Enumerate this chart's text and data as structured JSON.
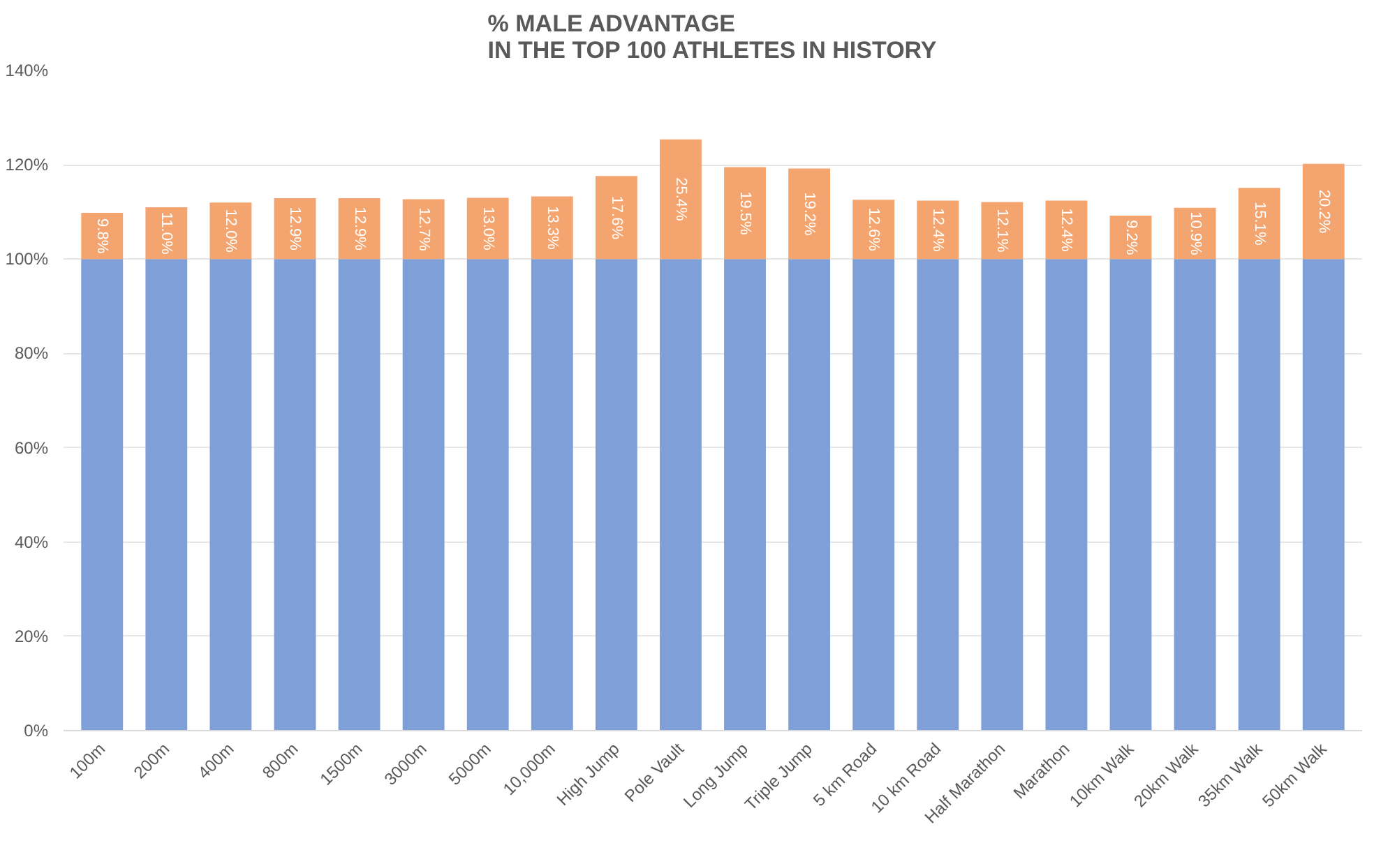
{
  "chart_data": {
    "type": "bar",
    "title": "% MALE ADVANTAGE\nIN THE TOP 100 ATHLETES IN HISTORY",
    "categories": [
      "100m",
      "200m",
      "400m",
      "800m",
      "1500m",
      "3000m",
      "5000m",
      "10,000m",
      "High Jump",
      "Pole Vault",
      "Long Jump",
      "Triple Jump",
      "5 km Road",
      "10 km Road",
      "Half Marathon",
      "Marathon",
      "10km Walk",
      "20km Walk",
      "35km Walk",
      "50km Walk"
    ],
    "stacked": true,
    "series": [
      {
        "color": "#7f9fd8",
        "values": [
          100,
          100,
          100,
          100,
          100,
          100,
          100,
          100,
          100,
          100,
          100,
          100,
          100,
          100,
          100,
          100,
          100,
          100,
          100,
          100
        ]
      },
      {
        "color": "#f4a46e",
        "values": [
          9.8,
          11.0,
          12.0,
          12.9,
          12.9,
          12.7,
          13.0,
          13.3,
          17.6,
          25.4,
          19.5,
          19.2,
          12.6,
          12.4,
          12.1,
          12.4,
          9.2,
          10.9,
          15.1,
          20.2
        ],
        "value_labels": [
          "9.8%",
          "11.0%",
          "12.0%",
          "12.9%",
          "12.9%",
          "12.7%",
          "13.0%",
          "13.3%",
          "17.6%",
          "25.4%",
          "19.5%",
          "19.2%",
          "12.6%",
          "12.4%",
          "12.1%",
          "12.4%",
          "9.2%",
          "10.9%",
          "15.1%",
          "20.2%"
        ]
      }
    ],
    "ylim": [
      0,
      140
    ],
    "yticks": [
      {
        "value": 0,
        "label": "0%"
      },
      {
        "value": 20,
        "label": "20%"
      },
      {
        "value": 40,
        "label": "40%"
      },
      {
        "value": 60,
        "label": "60%"
      },
      {
        "value": 80,
        "label": "80%"
      },
      {
        "value": 100,
        "label": "100%"
      },
      {
        "value": 120,
        "label": "120%"
      },
      {
        "value": 140,
        "label": "140%"
      }
    ],
    "grid": "y"
  }
}
